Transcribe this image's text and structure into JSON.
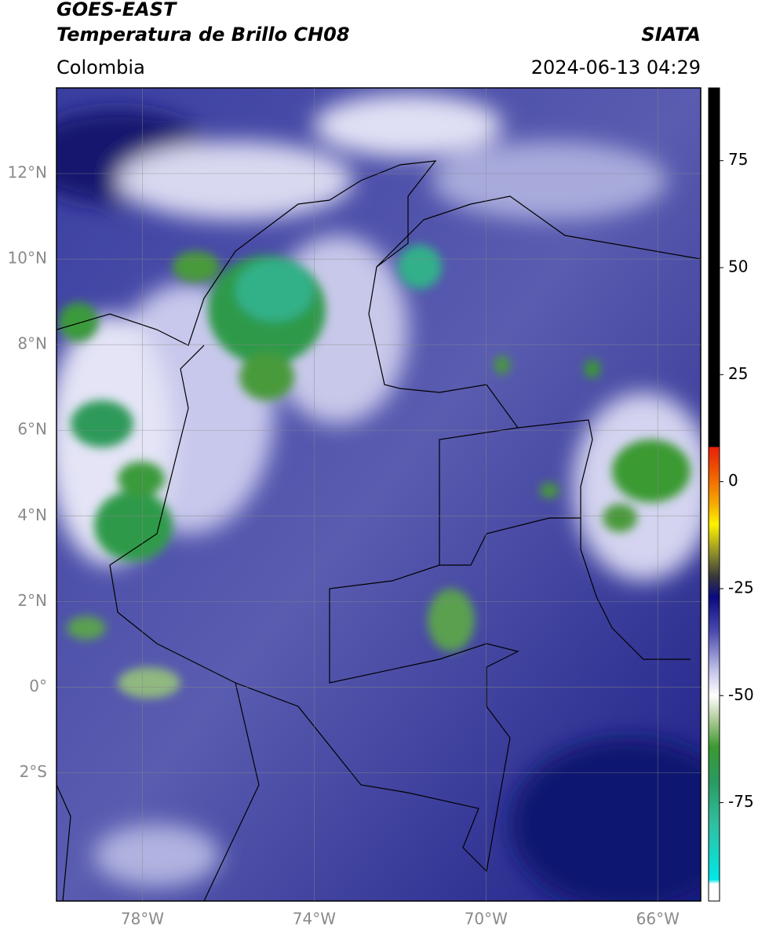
{
  "header": {
    "satellite": "GOES-EAST",
    "product": "Temperatura de Brillo CH08",
    "source": "SIATA",
    "region": "Colombia",
    "timestamp": "2024-06-13 04:29"
  },
  "map": {
    "lon_range": [
      -80,
      -65
    ],
    "lat_range": [
      -5,
      14
    ],
    "lon_ticks": [
      {
        "value": -78,
        "label": "78°W"
      },
      {
        "value": -74,
        "label": "74°W"
      },
      {
        "value": -70,
        "label": "70°W"
      },
      {
        "value": -66,
        "label": "66°W"
      }
    ],
    "lat_ticks": [
      {
        "value": 12,
        "label": "12°N"
      },
      {
        "value": 10,
        "label": "10°N"
      },
      {
        "value": 8,
        "label": "8°N"
      },
      {
        "value": 6,
        "label": "6°N"
      },
      {
        "value": 4,
        "label": "4°N"
      },
      {
        "value": 2,
        "label": "2°N"
      },
      {
        "value": 0,
        "label": "0°"
      },
      {
        "value": -2,
        "label": "2°S"
      }
    ],
    "grid": true
  },
  "colorbar": {
    "range": [
      -98,
      92
    ],
    "ticks": [
      75,
      50,
      25,
      0,
      -25,
      -50,
      -75
    ],
    "stops": [
      {
        "value": 92,
        "color": "#000000"
      },
      {
        "value": 8.2,
        "color": "#000000"
      },
      {
        "value": 8,
        "color": "#e8200c"
      },
      {
        "value": 2,
        "color": "#f05a00"
      },
      {
        "value": -5,
        "color": "#f5a800"
      },
      {
        "value": -10,
        "color": "#fff200"
      },
      {
        "value": -17,
        "color": "#8a8a2a"
      },
      {
        "value": -22,
        "color": "#3a3a3a"
      },
      {
        "value": -27,
        "color": "#0a0a80"
      },
      {
        "value": -35,
        "color": "#4a4ab0"
      },
      {
        "value": -44,
        "color": "#c0c0e8"
      },
      {
        "value": -50,
        "color": "#ffffff"
      },
      {
        "value": -56,
        "color": "#a8c890"
      },
      {
        "value": -62,
        "color": "#3a9a30"
      },
      {
        "value": -70,
        "color": "#2a9a60"
      },
      {
        "value": -80,
        "color": "#30c0a0"
      },
      {
        "value": -93,
        "color": "#00e8e8"
      },
      {
        "value": -94,
        "color": "#ffffff"
      },
      {
        "value": -98,
        "color": "#ffffff"
      }
    ]
  }
}
